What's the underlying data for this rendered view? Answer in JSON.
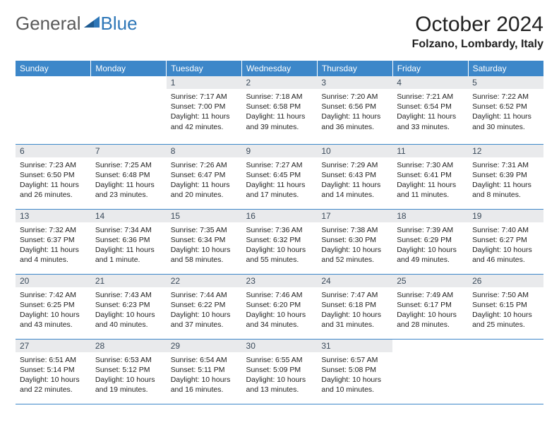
{
  "logo": {
    "general": "General",
    "blue": "Blue"
  },
  "title": "October 2024",
  "location": "Folzano, Lombardy, Italy",
  "colors": {
    "header_bg": "#3d87c9",
    "header_text": "#ffffff",
    "daynum_bg": "#e9eaec",
    "daynum_text": "#3a4a5a",
    "border": "#3d87c9",
    "logo_gray": "#5a5a5a",
    "logo_blue": "#2e77b8"
  },
  "weekdays": [
    "Sunday",
    "Monday",
    "Tuesday",
    "Wednesday",
    "Thursday",
    "Friday",
    "Saturday"
  ],
  "weeks": [
    [
      null,
      null,
      {
        "n": "1",
        "sr": "Sunrise: 7:17 AM",
        "ss": "Sunset: 7:00 PM",
        "d1": "Daylight: 11 hours",
        "d2": "and 42 minutes."
      },
      {
        "n": "2",
        "sr": "Sunrise: 7:18 AM",
        "ss": "Sunset: 6:58 PM",
        "d1": "Daylight: 11 hours",
        "d2": "and 39 minutes."
      },
      {
        "n": "3",
        "sr": "Sunrise: 7:20 AM",
        "ss": "Sunset: 6:56 PM",
        "d1": "Daylight: 11 hours",
        "d2": "and 36 minutes."
      },
      {
        "n": "4",
        "sr": "Sunrise: 7:21 AM",
        "ss": "Sunset: 6:54 PM",
        "d1": "Daylight: 11 hours",
        "d2": "and 33 minutes."
      },
      {
        "n": "5",
        "sr": "Sunrise: 7:22 AM",
        "ss": "Sunset: 6:52 PM",
        "d1": "Daylight: 11 hours",
        "d2": "and 30 minutes."
      }
    ],
    [
      {
        "n": "6",
        "sr": "Sunrise: 7:23 AM",
        "ss": "Sunset: 6:50 PM",
        "d1": "Daylight: 11 hours",
        "d2": "and 26 minutes."
      },
      {
        "n": "7",
        "sr": "Sunrise: 7:25 AM",
        "ss": "Sunset: 6:48 PM",
        "d1": "Daylight: 11 hours",
        "d2": "and 23 minutes."
      },
      {
        "n": "8",
        "sr": "Sunrise: 7:26 AM",
        "ss": "Sunset: 6:47 PM",
        "d1": "Daylight: 11 hours",
        "d2": "and 20 minutes."
      },
      {
        "n": "9",
        "sr": "Sunrise: 7:27 AM",
        "ss": "Sunset: 6:45 PM",
        "d1": "Daylight: 11 hours",
        "d2": "and 17 minutes."
      },
      {
        "n": "10",
        "sr": "Sunrise: 7:29 AM",
        "ss": "Sunset: 6:43 PM",
        "d1": "Daylight: 11 hours",
        "d2": "and 14 minutes."
      },
      {
        "n": "11",
        "sr": "Sunrise: 7:30 AM",
        "ss": "Sunset: 6:41 PM",
        "d1": "Daylight: 11 hours",
        "d2": "and 11 minutes."
      },
      {
        "n": "12",
        "sr": "Sunrise: 7:31 AM",
        "ss": "Sunset: 6:39 PM",
        "d1": "Daylight: 11 hours",
        "d2": "and 8 minutes."
      }
    ],
    [
      {
        "n": "13",
        "sr": "Sunrise: 7:32 AM",
        "ss": "Sunset: 6:37 PM",
        "d1": "Daylight: 11 hours",
        "d2": "and 4 minutes."
      },
      {
        "n": "14",
        "sr": "Sunrise: 7:34 AM",
        "ss": "Sunset: 6:36 PM",
        "d1": "Daylight: 11 hours",
        "d2": "and 1 minute."
      },
      {
        "n": "15",
        "sr": "Sunrise: 7:35 AM",
        "ss": "Sunset: 6:34 PM",
        "d1": "Daylight: 10 hours",
        "d2": "and 58 minutes."
      },
      {
        "n": "16",
        "sr": "Sunrise: 7:36 AM",
        "ss": "Sunset: 6:32 PM",
        "d1": "Daylight: 10 hours",
        "d2": "and 55 minutes."
      },
      {
        "n": "17",
        "sr": "Sunrise: 7:38 AM",
        "ss": "Sunset: 6:30 PM",
        "d1": "Daylight: 10 hours",
        "d2": "and 52 minutes."
      },
      {
        "n": "18",
        "sr": "Sunrise: 7:39 AM",
        "ss": "Sunset: 6:29 PM",
        "d1": "Daylight: 10 hours",
        "d2": "and 49 minutes."
      },
      {
        "n": "19",
        "sr": "Sunrise: 7:40 AM",
        "ss": "Sunset: 6:27 PM",
        "d1": "Daylight: 10 hours",
        "d2": "and 46 minutes."
      }
    ],
    [
      {
        "n": "20",
        "sr": "Sunrise: 7:42 AM",
        "ss": "Sunset: 6:25 PM",
        "d1": "Daylight: 10 hours",
        "d2": "and 43 minutes."
      },
      {
        "n": "21",
        "sr": "Sunrise: 7:43 AM",
        "ss": "Sunset: 6:23 PM",
        "d1": "Daylight: 10 hours",
        "d2": "and 40 minutes."
      },
      {
        "n": "22",
        "sr": "Sunrise: 7:44 AM",
        "ss": "Sunset: 6:22 PM",
        "d1": "Daylight: 10 hours",
        "d2": "and 37 minutes."
      },
      {
        "n": "23",
        "sr": "Sunrise: 7:46 AM",
        "ss": "Sunset: 6:20 PM",
        "d1": "Daylight: 10 hours",
        "d2": "and 34 minutes."
      },
      {
        "n": "24",
        "sr": "Sunrise: 7:47 AM",
        "ss": "Sunset: 6:18 PM",
        "d1": "Daylight: 10 hours",
        "d2": "and 31 minutes."
      },
      {
        "n": "25",
        "sr": "Sunrise: 7:49 AM",
        "ss": "Sunset: 6:17 PM",
        "d1": "Daylight: 10 hours",
        "d2": "and 28 minutes."
      },
      {
        "n": "26",
        "sr": "Sunrise: 7:50 AM",
        "ss": "Sunset: 6:15 PM",
        "d1": "Daylight: 10 hours",
        "d2": "and 25 minutes."
      }
    ],
    [
      {
        "n": "27",
        "sr": "Sunrise: 6:51 AM",
        "ss": "Sunset: 5:14 PM",
        "d1": "Daylight: 10 hours",
        "d2": "and 22 minutes."
      },
      {
        "n": "28",
        "sr": "Sunrise: 6:53 AM",
        "ss": "Sunset: 5:12 PM",
        "d1": "Daylight: 10 hours",
        "d2": "and 19 minutes."
      },
      {
        "n": "29",
        "sr": "Sunrise: 6:54 AM",
        "ss": "Sunset: 5:11 PM",
        "d1": "Daylight: 10 hours",
        "d2": "and 16 minutes."
      },
      {
        "n": "30",
        "sr": "Sunrise: 6:55 AM",
        "ss": "Sunset: 5:09 PM",
        "d1": "Daylight: 10 hours",
        "d2": "and 13 minutes."
      },
      {
        "n": "31",
        "sr": "Sunrise: 6:57 AM",
        "ss": "Sunset: 5:08 PM",
        "d1": "Daylight: 10 hours",
        "d2": "and 10 minutes."
      },
      null,
      null
    ]
  ]
}
